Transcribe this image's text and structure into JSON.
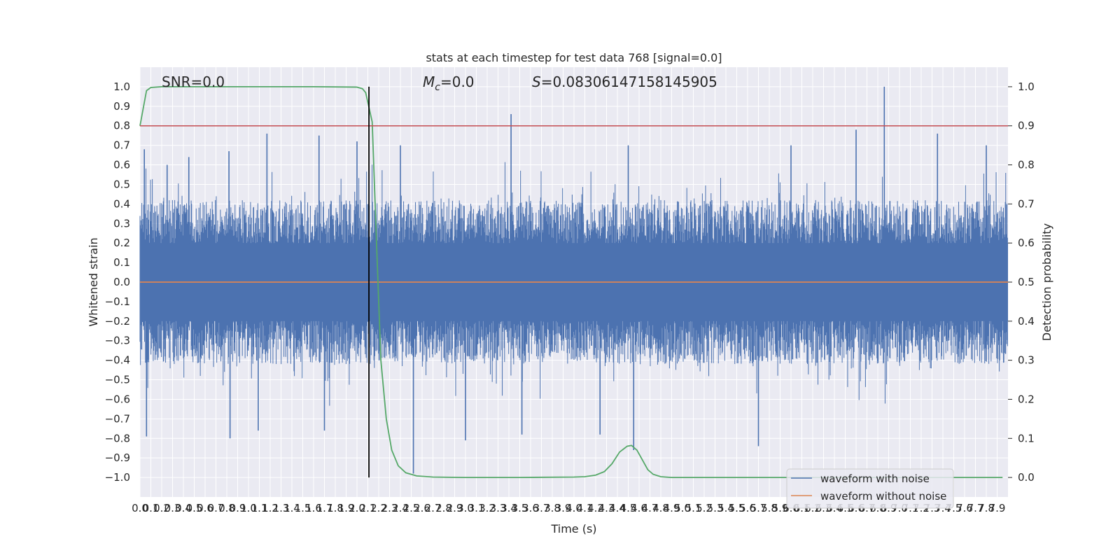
{
  "chart_data": {
    "type": "line",
    "title": "stats at each timestep for test data 768 [signal=0.0]",
    "xlabel": "Time (s)",
    "ylabel_left": "Whitened strain",
    "ylabel_right": "Detection probability",
    "xlim": [
      0.0,
      8.0
    ],
    "ylim_left": [
      -1.1,
      1.1
    ],
    "ylim_right": [
      -0.05,
      1.05
    ],
    "x_tick_step": 0.1,
    "x_ticks": [
      "0.0",
      "0.1",
      "0.2",
      "0.3",
      "0.4",
      "0.5",
      "0.6",
      "0.7",
      "0.8",
      "0.9",
      "1.0",
      "1.1",
      "1.2",
      "1.3",
      "1.4",
      "1.5",
      "1.6",
      "1.7",
      "1.8",
      "1.9",
      "2.0",
      "2.1",
      "2.2",
      "2.3",
      "2.4",
      "2.5",
      "2.6",
      "2.7",
      "2.8",
      "2.9",
      "3.0",
      "3.1",
      "3.2",
      "3.3",
      "3.4",
      "3.5",
      "3.6",
      "3.7",
      "3.8",
      "3.9",
      "4.0",
      "4.1",
      "4.2",
      "4.3",
      "4.4",
      "4.5",
      "4.6",
      "4.7",
      "4.8",
      "4.9",
      "5.0",
      "5.1",
      "5.2",
      "5.3",
      "5.4",
      "5.5",
      "5.6",
      "5.7",
      "5.8",
      "5.9",
      "6.0",
      "6.1",
      "6.2",
      "6.3",
      "6.4",
      "6.5",
      "6.6",
      "6.7",
      "6.8",
      "6.9",
      "7.0",
      "7.1",
      "7.2",
      "7.3",
      "7.4",
      "7.5",
      "7.6",
      "7.7",
      "7.8",
      "7.9"
    ],
    "y_ticks_left": [
      "−1.0",
      "−0.9",
      "−0.8",
      "−0.7",
      "−0.6",
      "−0.5",
      "−0.4",
      "−0.3",
      "−0.2",
      "−0.1",
      "0.0",
      "0.1",
      "0.2",
      "0.3",
      "0.4",
      "0.5",
      "0.6",
      "0.7",
      "0.8",
      "0.9",
      "1.0"
    ],
    "y_ticks_right": [
      "0.0",
      "0.1",
      "0.2",
      "0.3",
      "0.4",
      "0.5",
      "0.6",
      "0.7",
      "0.8",
      "0.9",
      "1.0"
    ],
    "annotations": {
      "snr": "SNR=0.0",
      "mc_symbol": "M",
      "mc_sub": "c",
      "mc_value": "=0.0",
      "s_symbol": "S",
      "s_value": "=0.08306147158145905"
    },
    "legend": {
      "placement": "lower-right",
      "entries": [
        "waveform with noise",
        "waveform without noise"
      ]
    },
    "grid": true,
    "series": [
      {
        "name": "waveform with noise",
        "axis": "left",
        "style": "noise",
        "typical_envelope": [
          -0.42,
          0.42
        ],
        "peaks": [
          {
            "x": 0.04,
            "y": 0.68
          },
          {
            "x": 0.06,
            "y": -0.79
          },
          {
            "x": 0.25,
            "y": 0.6
          },
          {
            "x": 0.45,
            "y": 0.64
          },
          {
            "x": 0.82,
            "y": 0.67
          },
          {
            "x": 0.83,
            "y": -0.8
          },
          {
            "x": 1.09,
            "y": -0.76
          },
          {
            "x": 1.17,
            "y": 0.76
          },
          {
            "x": 1.65,
            "y": 0.75
          },
          {
            "x": 1.7,
            "y": -0.76
          },
          {
            "x": 2.0,
            "y": 0.72
          },
          {
            "x": 2.52,
            "y": -0.98
          },
          {
            "x": 2.4,
            "y": 0.7
          },
          {
            "x": 3.0,
            "y": -0.81
          },
          {
            "x": 3.42,
            "y": 0.86
          },
          {
            "x": 3.52,
            "y": -0.78
          },
          {
            "x": 4.24,
            "y": -0.78
          },
          {
            "x": 4.55,
            "y": -0.86
          },
          {
            "x": 4.5,
            "y": 0.7
          },
          {
            "x": 5.7,
            "y": -0.84
          },
          {
            "x": 6.0,
            "y": 0.7
          },
          {
            "x": 6.6,
            "y": 0.78
          },
          {
            "x": 6.86,
            "y": 1.0
          },
          {
            "x": 7.35,
            "y": 0.76
          },
          {
            "x": 7.8,
            "y": 0.7
          }
        ],
        "color": "#4c72b0"
      },
      {
        "name": "waveform without noise",
        "axis": "left",
        "x": [
          0.0,
          8.0
        ],
        "values": [
          0.0,
          0.0
        ],
        "color": "#dd8452"
      },
      {
        "axis": "right",
        "x": [
          0.0,
          0.06,
          0.1,
          0.2,
          0.4,
          0.8,
          1.2,
          1.6,
          2.0,
          2.05,
          2.08,
          2.1,
          2.14,
          2.18,
          2.22,
          2.27,
          2.32,
          2.38,
          2.45,
          2.55,
          2.7,
          3.0,
          3.5,
          4.0,
          4.1,
          4.2,
          4.28,
          4.35,
          4.42,
          4.49,
          4.53,
          4.58,
          4.63,
          4.68,
          4.73,
          4.8,
          4.9,
          5.0,
          5.5,
          6.0,
          6.5,
          7.0,
          7.5,
          7.95
        ],
        "values": [
          0.9,
          0.99,
          0.998,
          1.0,
          1.0,
          1.0,
          1.0,
          1.0,
          0.999,
          0.995,
          0.985,
          0.96,
          0.91,
          0.6,
          0.3,
          0.15,
          0.07,
          0.03,
          0.012,
          0.004,
          0.001,
          0.0,
          0.0,
          0.001,
          0.002,
          0.006,
          0.015,
          0.035,
          0.065,
          0.08,
          0.082,
          0.07,
          0.045,
          0.02,
          0.008,
          0.002,
          0.0,
          0.0,
          0.0,
          0.0,
          0.0,
          0.0,
          0.0,
          0.0
        ],
        "color": "#55a868"
      },
      {
        "axis": "right",
        "style": "threshold",
        "x": [
          0.0,
          8.0
        ],
        "values": [
          0.9,
          0.9
        ],
        "color": "#c44e52"
      }
    ],
    "vertical_marker": {
      "x": 2.11,
      "y_range": [
        -1.0,
        1.0
      ],
      "color": "#000000"
    }
  }
}
